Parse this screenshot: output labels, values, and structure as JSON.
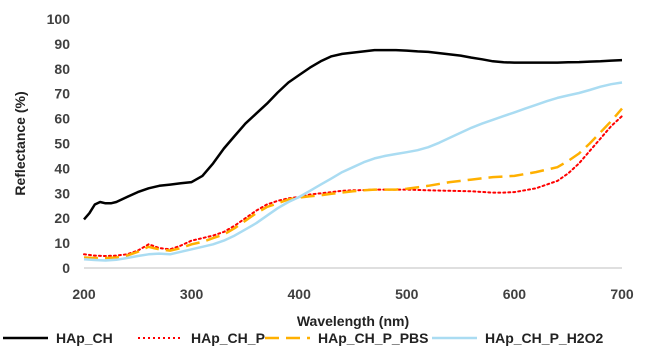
{
  "chart_data": {
    "type": "line",
    "xlabel": "Wavelength (nm)",
    "ylabel": "Reflectance (%)",
    "xlim": [
      200,
      700
    ],
    "ylim": [
      0,
      100
    ],
    "x_ticks": [
      200,
      300,
      400,
      500,
      600,
      700
    ],
    "y_ticks": [
      0,
      10,
      20,
      30,
      40,
      50,
      60,
      70,
      80,
      90,
      100
    ],
    "grid": false,
    "legend_position": "bottom",
    "series": [
      {
        "name": "HAp_CH",
        "color": "#000000",
        "dash": "solid",
        "x": [
          200,
          205,
          210,
          215,
          220,
          225,
          230,
          240,
          250,
          260,
          270,
          280,
          290,
          300,
          310,
          320,
          330,
          340,
          350,
          360,
          370,
          380,
          390,
          400,
          410,
          420,
          430,
          440,
          450,
          460,
          470,
          480,
          490,
          500,
          510,
          520,
          530,
          540,
          550,
          560,
          570,
          580,
          590,
          600,
          610,
          620,
          630,
          640,
          650,
          660,
          670,
          680,
          690,
          700
        ],
        "values": [
          19.5,
          22,
          25.5,
          26.5,
          26,
          26,
          26.5,
          28.5,
          30.5,
          32,
          33,
          33.5,
          34,
          34.5,
          37,
          42,
          48,
          53,
          58,
          62,
          66,
          70.5,
          74.5,
          77.5,
          80.5,
          83,
          85,
          86,
          86.5,
          87,
          87.5,
          87.5,
          87.5,
          87.3,
          87,
          86.8,
          86.3,
          85.8,
          85.3,
          84.5,
          83.8,
          83,
          82.6,
          82.5,
          82.5,
          82.5,
          82.5,
          82.5,
          82.6,
          82.7,
          82.9,
          83,
          83.3,
          83.5
        ]
      },
      {
        "name": "HAp_CH_P",
        "color": "#ff0000",
        "dash": "dotted",
        "x": [
          200,
          210,
          220,
          230,
          240,
          250,
          260,
          265,
          270,
          280,
          290,
          300,
          310,
          320,
          330,
          340,
          350,
          360,
          370,
          380,
          390,
          400,
          410,
          420,
          430,
          440,
          450,
          460,
          470,
          480,
          490,
          500,
          520,
          540,
          560,
          580,
          590,
          600,
          620,
          640,
          650,
          660,
          670,
          680,
          690,
          700
        ],
        "values": [
          5.5,
          5,
          4.8,
          5,
          5.5,
          7,
          9.5,
          8.8,
          8,
          7.5,
          9,
          11,
          12,
          13,
          14.5,
          17,
          20,
          23,
          25.5,
          27,
          28,
          28.5,
          29.5,
          30,
          30.5,
          31,
          31.2,
          31.3,
          31.5,
          31.5,
          31.5,
          31.5,
          31.2,
          31,
          30.8,
          30.3,
          30.3,
          30.5,
          32,
          35,
          38,
          42,
          47,
          52,
          57,
          61
        ]
      },
      {
        "name": "HAp_CH_P_PBS",
        "color": "#ffb000",
        "dash": "dashed",
        "x": [
          200,
          210,
          220,
          230,
          240,
          250,
          260,
          265,
          270,
          280,
          290,
          300,
          310,
          320,
          330,
          340,
          350,
          360,
          370,
          380,
          390,
          400,
          410,
          420,
          430,
          440,
          450,
          460,
          470,
          480,
          490,
          500,
          520,
          540,
          560,
          580,
          600,
          620,
          640,
          650,
          660,
          670,
          680,
          690,
          700
        ],
        "values": [
          4.2,
          4,
          4,
          4.2,
          5,
          6.5,
          8.5,
          8,
          7.5,
          7,
          8,
          9.5,
          10.5,
          12,
          13.5,
          16,
          19,
          22,
          24.5,
          26,
          27.5,
          28.3,
          28.8,
          29.2,
          29.8,
          30.3,
          30.8,
          31.2,
          31.5,
          31.5,
          31.5,
          31.8,
          33,
          34.5,
          35.5,
          36.5,
          37,
          38.5,
          40.5,
          43,
          46,
          50,
          54.5,
          59,
          64
        ]
      },
      {
        "name": "HAp_CH_P_H2O2",
        "color": "#aadcf2",
        "dash": "solid",
        "x": [
          200,
          210,
          220,
          230,
          240,
          250,
          260,
          270,
          280,
          290,
          300,
          310,
          320,
          330,
          340,
          350,
          360,
          370,
          380,
          390,
          400,
          410,
          420,
          430,
          440,
          450,
          460,
          470,
          480,
          490,
          500,
          510,
          520,
          530,
          540,
          550,
          560,
          570,
          580,
          590,
          600,
          610,
          620,
          630,
          640,
          650,
          660,
          670,
          680,
          690,
          700
        ],
        "values": [
          3.5,
          3.2,
          3,
          3.3,
          4,
          4.8,
          5.5,
          5.8,
          5.5,
          6.5,
          7.5,
          8.5,
          9.5,
          11,
          13,
          15.5,
          18,
          21,
          24,
          26.5,
          28.5,
          31,
          33.5,
          36,
          38.5,
          40.5,
          42.5,
          44,
          45,
          45.8,
          46.5,
          47.3,
          48.5,
          50.3,
          52.3,
          54.3,
          56.3,
          58,
          59.5,
          61,
          62.5,
          64,
          65.5,
          67,
          68.3,
          69.3,
          70.3,
          71.5,
          72.8,
          73.8,
          74.5
        ]
      }
    ]
  }
}
